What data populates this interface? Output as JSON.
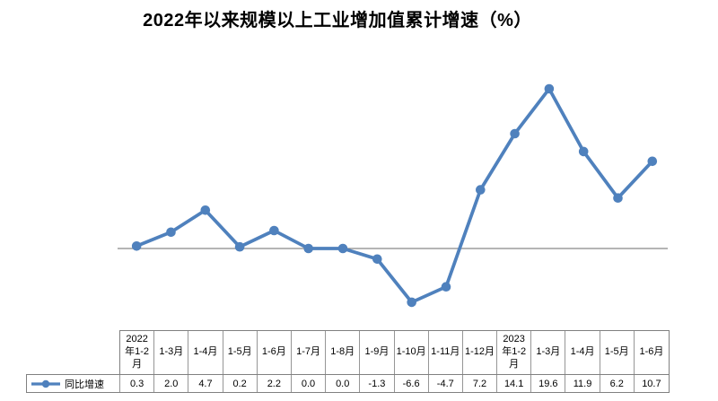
{
  "title": "2022年以来规模以上工业增加值累计增速（%）",
  "chart_data": {
    "type": "line",
    "title": "2022年以来规模以上工业增加值累计增速（%）",
    "categories": [
      "2022年1-2月",
      "1-3月",
      "1-4月",
      "1-5月",
      "1-6月",
      "1-7月",
      "1-8月",
      "1-9月",
      "1-10月",
      "1-11月",
      "1-12月",
      "2023年1-2月",
      "1-3月",
      "1-4月",
      "1-5月",
      "1-6月"
    ],
    "series": [
      {
        "name": "同比增速",
        "values": [
          0.3,
          2.0,
          4.7,
          0.2,
          2.2,
          0.0,
          0.0,
          -1.3,
          -6.6,
          -4.7,
          7.2,
          14.1,
          19.6,
          11.9,
          6.2,
          10.7
        ],
        "color": "#4F81BD",
        "marker": "circle"
      }
    ],
    "xlabel": "",
    "ylabel": "",
    "baseline_value": 0,
    "gridlines": false,
    "y_axis_labels_visible": false,
    "legend_position": "data-table-left",
    "data_table_visible": true
  },
  "table": {
    "legend_label": "同比增速",
    "legend_key_icon": "line-with-circle-marker-icon",
    "value_decimals": 1
  },
  "colors": {
    "series_blue": "#4F81BD",
    "axis_gray": "#898989",
    "table_inner_border": "#969696",
    "table_outer_border": "#808080",
    "background": "#FFFFFF",
    "title_text": "#000000"
  }
}
